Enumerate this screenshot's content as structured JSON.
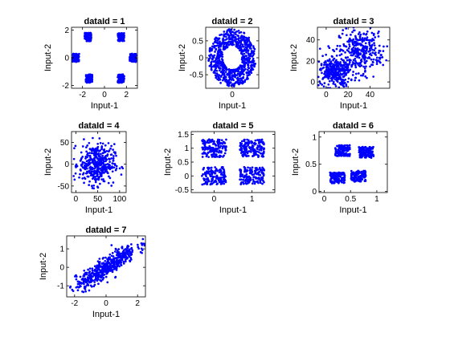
{
  "figure": {
    "background": "#ffffff",
    "marker_color": "#0000ff",
    "axis_color": "#000000"
  },
  "chart_data": [
    {
      "type": "scatter",
      "title": "dataId = 1",
      "xlabel": "Input-1",
      "ylabel": "Input-2",
      "xlim": [
        -3,
        3
      ],
      "ylim": [
        -2.2,
        2.2
      ],
      "xticks": [
        -2,
        0,
        2
      ],
      "yticks": [
        -2,
        0,
        2
      ],
      "pattern": "six-clusters",
      "clusters": [
        [
          1.5,
          1.5
        ],
        [
          -1.5,
          1.5
        ],
        [
          -2.6,
          0
        ],
        [
          2.6,
          0
        ],
        [
          -1.4,
          -1.5
        ],
        [
          1.5,
          -1.5
        ]
      ],
      "cluster_spread": 0.3,
      "n_points": 600
    },
    {
      "type": "scatter",
      "title": "dataId = 2",
      "xlabel": "Input-1",
      "ylabel": "Input-2",
      "xlim": [
        -0.95,
        0.95
      ],
      "ylim": [
        -0.9,
        0.9
      ],
      "xticks": [
        0
      ],
      "yticks": [
        -0.5,
        0,
        0.5
      ],
      "pattern": "ring",
      "inner_radius": 0.35,
      "outer_radius": 0.85,
      "n_points": 700
    },
    {
      "type": "scatter",
      "title": "dataId = 3",
      "xlabel": "Input-1",
      "ylabel": "Input-2",
      "xlim": [
        -8,
        58
      ],
      "ylim": [
        -6,
        52
      ],
      "xticks": [
        0,
        20,
        40
      ],
      "yticks": [
        0,
        20,
        40
      ],
      "pattern": "two-blobs",
      "clusters": [
        [
          8,
          9
        ],
        [
          32,
          30
        ]
      ],
      "cluster_spread": [
        7,
        10
      ],
      "n_points": 650
    },
    {
      "type": "scatter",
      "title": "dataId = 4",
      "xlabel": "Input-1",
      "ylabel": "Input-2",
      "xlim": [
        -10,
        115
      ],
      "ylim": [
        -65,
        75
      ],
      "xticks": [
        0,
        50,
        100
      ],
      "yticks": [
        -50,
        0,
        50
      ],
      "pattern": "diffuse-blob",
      "center": [
        48,
        0
      ],
      "spread": [
        20,
        23
      ],
      "n_points": 400
    },
    {
      "type": "scatter",
      "title": "dataId = 5",
      "xlabel": "Input-1",
      "ylabel": "Input-2",
      "xlim": [
        -0.6,
        1.6
      ],
      "ylim": [
        -0.6,
        1.6
      ],
      "xticks": [
        0,
        1
      ],
      "yticks": [
        -0.5,
        0,
        0.5,
        1,
        1.5
      ],
      "pattern": "four-squares",
      "clusters": [
        [
          0,
          0
        ],
        [
          1,
          0
        ],
        [
          0,
          1
        ],
        [
          1,
          1
        ]
      ],
      "square_half_width": 0.32,
      "n_points": 600
    },
    {
      "type": "scatter",
      "title": "dataId = 6",
      "xlabel": "Input-1",
      "ylabel": "Input-2",
      "xlim": [
        -0.1,
        1.2
      ],
      "ylim": [
        -0.02,
        1.1
      ],
      "xticks": [
        0,
        0.5,
        1
      ],
      "yticks": [
        0,
        0.5,
        1
      ],
      "pattern": "four-clusters",
      "clusters": [
        [
          0.25,
          0.25
        ],
        [
          0.65,
          0.28
        ],
        [
          0.35,
          0.75
        ],
        [
          0.8,
          0.72
        ]
      ],
      "cluster_spread": [
        0.14,
        0.1
      ],
      "n_points": 500
    },
    {
      "type": "scatter",
      "title": "dataId = 7",
      "xlabel": "Input-1",
      "ylabel": "Input-2",
      "xlim": [
        -2.5,
        2.5
      ],
      "ylim": [
        -1.6,
        1.7
      ],
      "xticks": [
        -2,
        0,
        2
      ],
      "yticks": [
        -1,
        0,
        1
      ],
      "pattern": "linear-correlated",
      "slope": 0.55,
      "x_spread": 0.95,
      "noise": 0.28,
      "n_points": 500
    }
  ]
}
